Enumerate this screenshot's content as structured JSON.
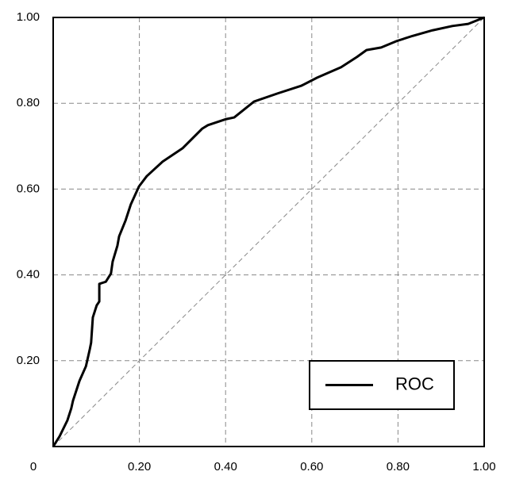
{
  "chart_data": {
    "type": "line",
    "x": [
      0,
      0.015,
      0.033,
      0.042,
      0.046,
      0.061,
      0.076,
      0.085,
      0.088,
      0.092,
      0.101,
      0.107,
      0.107,
      0.122,
      0.134,
      0.138,
      0.149,
      0.153,
      0.168,
      0.18,
      0.199,
      0.217,
      0.254,
      0.3,
      0.346,
      0.359,
      0.401,
      0.42,
      0.466,
      0.521,
      0.576,
      0.613,
      0.668,
      0.705,
      0.727,
      0.761,
      0.797,
      0.834,
      0.88,
      0.926,
      0.963,
      1
    ],
    "series": [
      {
        "name": "ROC",
        "color": "#000000",
        "values": [
          0,
          0.024,
          0.061,
          0.089,
          0.107,
          0.153,
          0.187,
          0.227,
          0.242,
          0.301,
          0.329,
          0.338,
          0.379,
          0.384,
          0.403,
          0.431,
          0.468,
          0.49,
          0.527,
          0.564,
          0.606,
          0.63,
          0.664,
          0.695,
          0.741,
          0.749,
          0.763,
          0.767,
          0.804,
          0.823,
          0.841,
          0.86,
          0.884,
          0.908,
          0.924,
          0.93,
          0.945,
          0.957,
          0.97,
          0.98,
          0.985,
          1
        ]
      }
    ],
    "xlim": [
      0,
      1
    ],
    "ylim": [
      0,
      1
    ],
    "xticks": [
      0,
      {
        "value": 0.2,
        "label": "0.20"
      },
      {
        "value": 0.4,
        "label": "0.40"
      },
      {
        "value": 0.6,
        "label": "0.60"
      },
      {
        "value": 0.8,
        "label": "0.80"
      },
      {
        "value": 1,
        "label": "1.00"
      }
    ],
    "yticks": [
      {
        "value": 0.2,
        "label": "0.20"
      },
      {
        "value": 0.4,
        "label": "0.40"
      },
      {
        "value": 0.6,
        "label": "0.60"
      },
      {
        "value": 0.8,
        "label": "0.80"
      },
      {
        "value": 1,
        "label": "1.00"
      }
    ],
    "grid": true,
    "legend": "lower right"
  }
}
